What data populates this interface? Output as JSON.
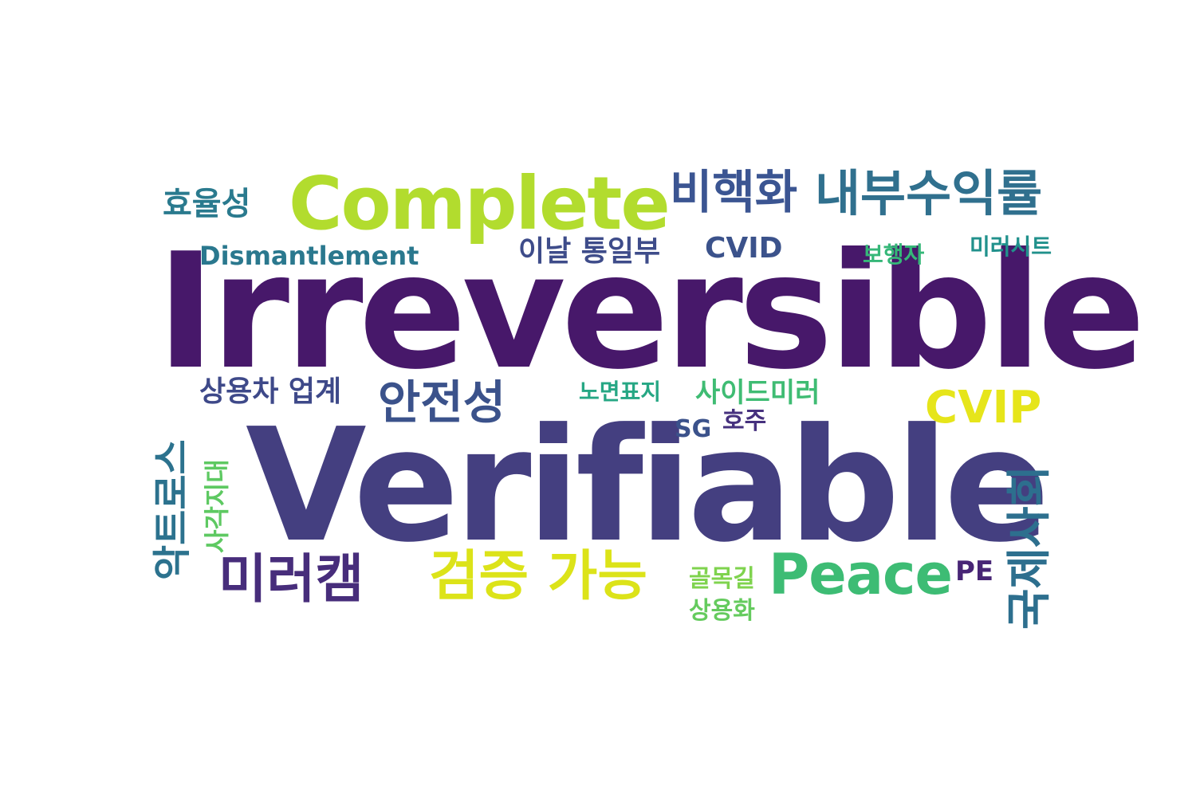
{
  "words": [
    {
      "text": "Irreversible",
      "color": "#47186a"
    },
    {
      "text": "Verifiable",
      "color": "#443f80"
    },
    {
      "text": "Complete",
      "color": "#b2dc2e"
    },
    {
      "text": "비핵화",
      "color": "#3b5592"
    },
    {
      "text": "내부수익률",
      "color": "#30708e"
    },
    {
      "text": "효율성",
      "color": "#2a7a8e"
    },
    {
      "text": "Dismantlement",
      "color": "#2a788e"
    },
    {
      "text": "이날 통일부",
      "color": "#3e4c8a"
    },
    {
      "text": "CVID",
      "color": "#3b528b"
    },
    {
      "text": "보행자",
      "color": "#35b778"
    },
    {
      "text": "미러시트",
      "color": "#21918c"
    },
    {
      "text": "상용차 업계",
      "color": "#3e4989"
    },
    {
      "text": "안전성",
      "color": "#3b528b"
    },
    {
      "text": "노면표지",
      "color": "#26a784"
    },
    {
      "text": "사이드미러",
      "color": "#3fbc73"
    },
    {
      "text": "CVIP",
      "color": "#e6e51a"
    },
    {
      "text": "SG",
      "color": "#3b528b"
    },
    {
      "text": "호주",
      "color": "#46317e"
    },
    {
      "text": "악트로스",
      "color": "#2c728e"
    },
    {
      "text": "사각지대",
      "color": "#5ec962"
    },
    {
      "text": "미러캠",
      "color": "#472d7b"
    },
    {
      "text": "검증 가능",
      "color": "#dce319"
    },
    {
      "text": "골목길",
      "color": "#7fd34e"
    },
    {
      "text": "상용화",
      "color": "#65cb5e"
    },
    {
      "text": "Peace",
      "color": "#3dbc74"
    },
    {
      "text": "PE",
      "color": "#482576"
    },
    {
      "text": "국제사회",
      "color": "#2d6f8e"
    }
  ]
}
